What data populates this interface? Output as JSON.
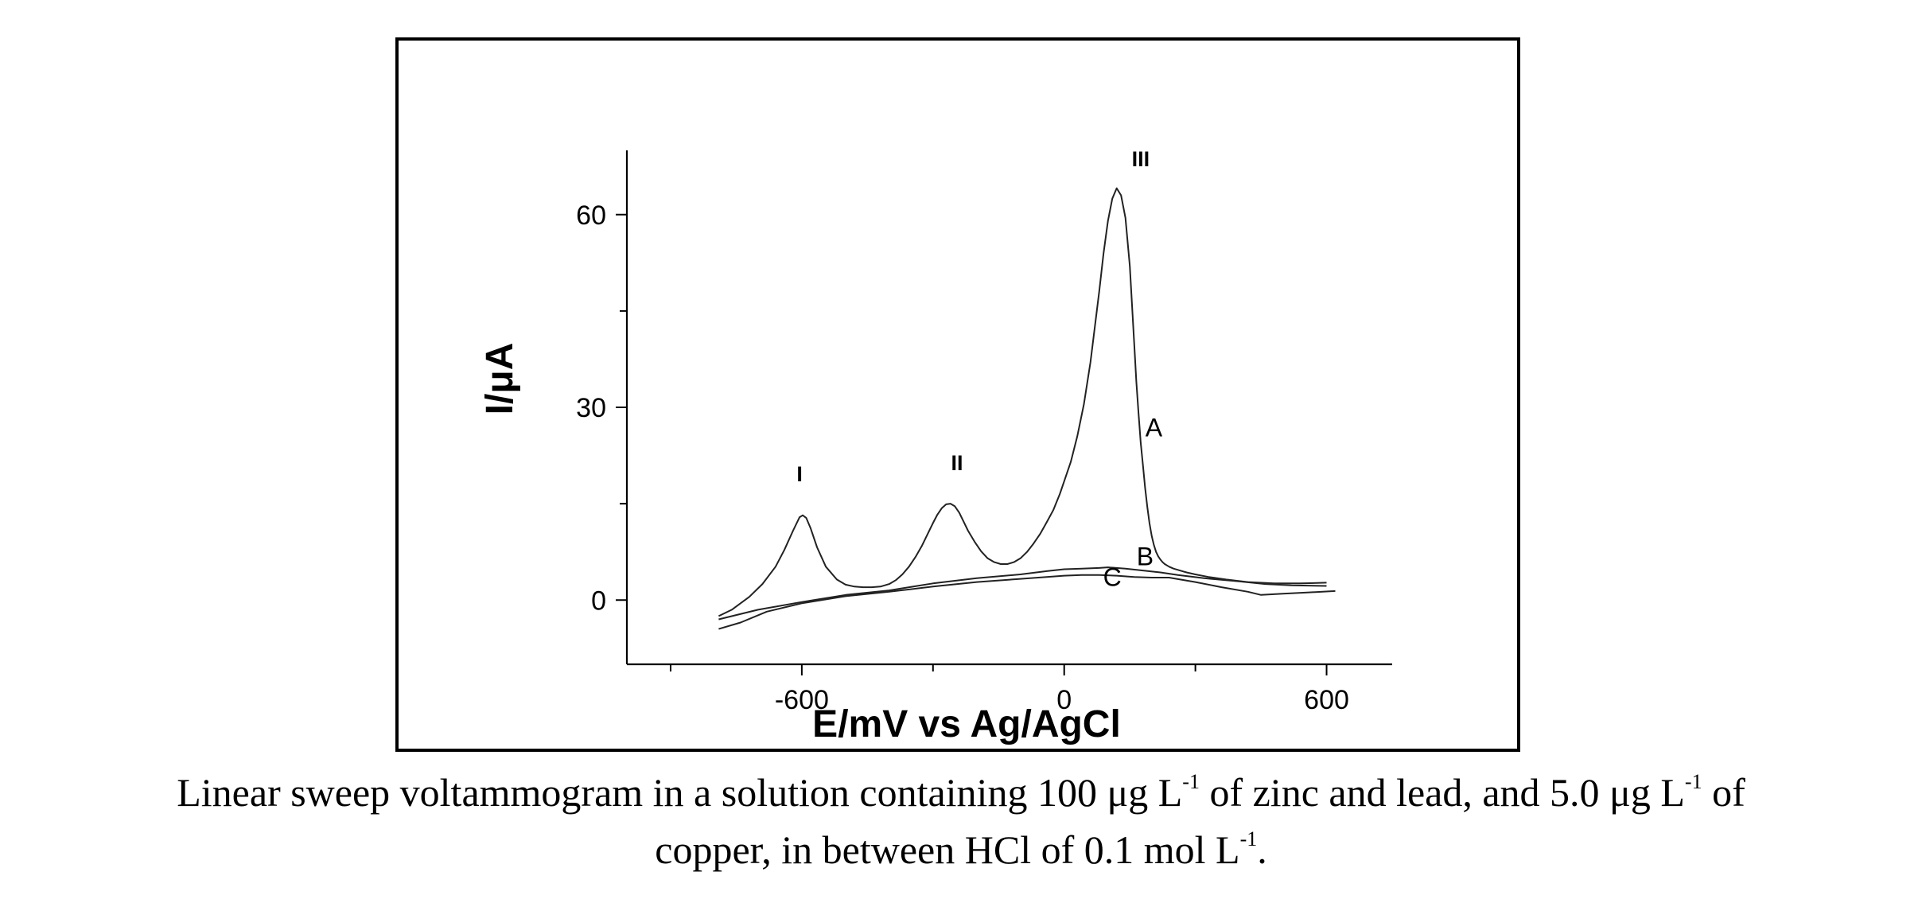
{
  "chart_data": {
    "type": "line",
    "xlabel": "E/mV vs Ag/AgCl",
    "ylabel": "I/μA",
    "xlim": [
      -1000,
      750
    ],
    "ylim": [
      -10,
      70
    ],
    "xticks": [
      -600,
      0,
      600
    ],
    "yticks": [
      0,
      30,
      60
    ],
    "grid": false,
    "series": [
      {
        "name": "A",
        "x": [
          -790,
          -760,
          -720,
          -690,
          -660,
          -640,
          -620,
          -605,
          -598,
          -590,
          -580,
          -565,
          -545,
          -520,
          -500,
          -480,
          -460,
          -440,
          -420,
          -400,
          -385,
          -370,
          -355,
          -340,
          -325,
          -310,
          -300,
          -290,
          -280,
          -270,
          -260,
          -250,
          -240,
          -230,
          -220,
          -205,
          -190,
          -175,
          -160,
          -145,
          -130,
          -115,
          -100,
          -85,
          -70,
          -55,
          -40,
          -25,
          -10,
          0,
          15,
          30,
          45,
          60,
          70,
          80,
          90,
          100,
          110,
          120,
          130,
          140,
          150,
          160,
          165,
          170,
          175,
          180,
          185,
          190,
          195,
          200,
          205,
          210,
          215,
          220,
          225,
          230,
          240,
          250,
          260,
          270,
          280,
          300,
          330,
          370,
          420,
          480,
          540,
          600
        ],
        "y": [
          -2.5,
          -1.5,
          0.5,
          2.5,
          5.2,
          7.8,
          10.8,
          12.9,
          13.2,
          12.8,
          11.2,
          8.2,
          5.2,
          3.2,
          2.4,
          2.1,
          2.0,
          2.0,
          2.1,
          2.5,
          3.1,
          4.0,
          5.2,
          6.7,
          8.5,
          10.6,
          12.0,
          13.3,
          14.3,
          14.9,
          15.0,
          14.6,
          13.6,
          12.2,
          10.8,
          9.1,
          7.6,
          6.5,
          5.9,
          5.6,
          5.6,
          5.9,
          6.5,
          7.5,
          8.8,
          10.3,
          12.1,
          14.0,
          16.5,
          18.5,
          21.5,
          25.5,
          30.5,
          37.0,
          42.5,
          48.0,
          54.0,
          59.0,
          62.5,
          64.1,
          63.0,
          59.5,
          52.0,
          40.0,
          34.0,
          29.0,
          24.5,
          21.0,
          17.5,
          14.5,
          12.0,
          10.0,
          8.6,
          7.5,
          6.8,
          6.3,
          5.9,
          5.6,
          5.2,
          4.9,
          4.7,
          4.5,
          4.3,
          4.0,
          3.6,
          3.2,
          2.8,
          2.6,
          2.6,
          2.7
        ]
      },
      {
        "name": "B",
        "x": [
          -790,
          -700,
          -600,
          -500,
          -400,
          -300,
          -200,
          -100,
          -40,
          0,
          40,
          80,
          100,
          140,
          180,
          220,
          260,
          320,
          400,
          460,
          520,
          600
        ],
        "y": [
          -3.0,
          -1.5,
          -0.3,
          0.8,
          1.5,
          2.6,
          3.4,
          4.0,
          4.5,
          4.8,
          4.9,
          5.0,
          5.1,
          4.9,
          4.6,
          4.3,
          3.9,
          3.4,
          2.9,
          2.5,
          2.3,
          2.2
        ]
      },
      {
        "name": "C",
        "x": [
          -790,
          -740,
          -680,
          -600,
          -500,
          -400,
          -300,
          -200,
          -100,
          -40,
          0,
          40,
          80,
          120,
          160,
          200,
          240,
          300,
          360,
          420,
          450,
          500,
          560,
          620
        ],
        "y": [
          -4.5,
          -3.5,
          -1.8,
          -0.5,
          0.6,
          1.3,
          2.1,
          2.8,
          3.3,
          3.6,
          3.8,
          3.9,
          3.9,
          3.8,
          3.6,
          3.5,
          3.5,
          2.8,
          2.0,
          1.3,
          0.8,
          1.0,
          1.2,
          1.4
        ]
      }
    ],
    "peak_labels": [
      {
        "text": "I",
        "x": -605,
        "y": 18.5
      },
      {
        "text": "II",
        "x": -245,
        "y": 20.2
      },
      {
        "text": "III",
        "x": 175,
        "y": 67.5
      }
    ],
    "curve_labels": [
      {
        "text": "A",
        "x": 205,
        "y": 25.5
      },
      {
        "text": "B",
        "x": 185,
        "y": 5.4
      },
      {
        "text": "C",
        "x": 110,
        "y": 2.2
      }
    ]
  },
  "caption": {
    "line1_part1": "Linear sweep voltammogram in a solution containing 100 μg L",
    "sup1": "-1",
    "line1_part2": " of zinc and lead, and 5.0 μg L",
    "sup2": "-1",
    "line1_part3": " of",
    "line2_part1": "copper, in between HCl of 0.1 mol L",
    "sup3": "-1",
    "line2_part2": "."
  }
}
